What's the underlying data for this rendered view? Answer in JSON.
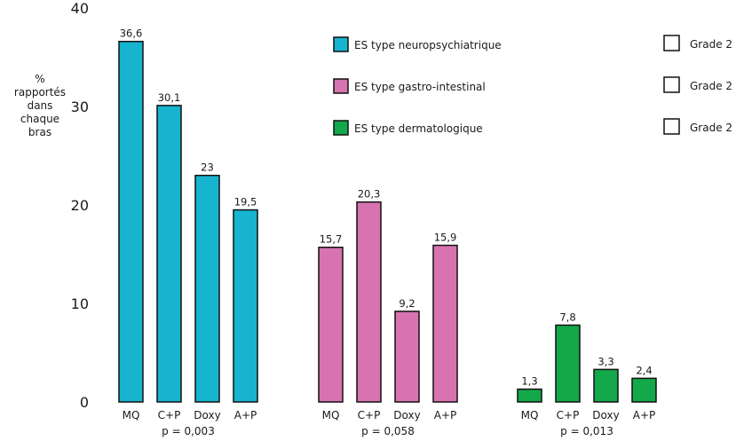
{
  "chart_data": {
    "type": "bar",
    "ylabel_lines": [
      "%",
      "rapportés",
      "dans",
      "chaque",
      "bras"
    ],
    "ylim": [
      0,
      40
    ],
    "yticks": [
      "0",
      "10",
      "20",
      "30",
      "40"
    ],
    "categories": [
      "MQ",
      "C+P",
      "Doxy",
      "A+P"
    ],
    "groups": [
      {
        "series": "ES type neuropsychiatrique",
        "color": "#17b4cf",
        "values": [
          36.6,
          30.1,
          23,
          19.5
        ],
        "value_labels": [
          "36,6",
          "30,1",
          "23",
          "19,5"
        ],
        "pvalue": "p = 0,003"
      },
      {
        "series": "ES type gastro-intestinal",
        "color": "#d673b0",
        "values": [
          15.7,
          20.3,
          9.2,
          15.9
        ],
        "value_labels": [
          "15,7",
          "20,3",
          "9,2",
          "15,9"
        ],
        "pvalue": "p = 0,058"
      },
      {
        "series": "ES type dermatologique",
        "color": "#13a84a",
        "values": [
          1.3,
          7.8,
          3.3,
          2.4
        ],
        "value_labels": [
          "1,3",
          "7,8",
          "3,3",
          "2,4"
        ],
        "pvalue": "p = 0,013"
      }
    ],
    "legend": [
      {
        "label": "ES type neuropsychiatrique",
        "color": "#17b4cf"
      },
      {
        "label": "ES type gastro-intestinal",
        "color": "#d673b0"
      },
      {
        "label": "ES type dermatologique",
        "color": "#13a84a"
      }
    ],
    "legend2": [
      {
        "label": "Grade 2",
        "color": "#ffffff"
      },
      {
        "label": "Grade 2",
        "color": "#ffffff"
      },
      {
        "label": "Grade 2",
        "color": "#ffffff"
      }
    ],
    "legend_position": "top-right",
    "grid": false
  }
}
